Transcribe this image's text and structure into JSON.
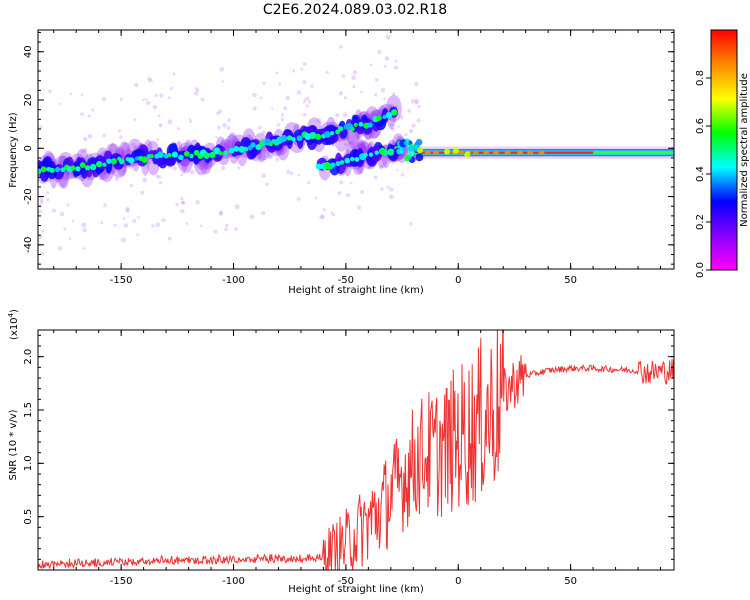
{
  "title": "C2E6.2024.089.03.02.R18",
  "chart_data": [
    {
      "type": "heatmap",
      "name": "spectrogram",
      "xlabel": "Height of straight line (km)",
      "ylabel": "Frequency (Hz)",
      "xlim": [
        -187,
        96
      ],
      "ylim": [
        -50,
        49
      ],
      "x_ticks": [
        -150,
        -100,
        -50,
        0,
        50
      ],
      "y_ticks": [
        -40,
        -20,
        0,
        20,
        40
      ],
      "colorbar": {
        "label": "Normalized spectral amplitude",
        "range": [
          0.0,
          1.0
        ],
        "ticks": [
          0.0,
          0.2,
          0.4,
          0.6,
          0.8
        ],
        "colormap": [
          "#ff00ff",
          "#8800ff",
          "#0000ff",
          "#00ffff",
          "#00ff00",
          "#ffff00",
          "#ff8800",
          "#ff0000"
        ]
      },
      "ridge": {
        "x": [
          -187,
          -175,
          -160,
          -150,
          -140,
          -130,
          -120,
          -110,
          -100,
          -90,
          -80,
          -70,
          -60,
          -50,
          -40,
          -30,
          -27,
          -20,
          -10,
          0,
          10,
          30,
          60,
          96
        ],
        "y": [
          -9,
          -8,
          -7,
          -5,
          -4,
          -3,
          -3,
          -2,
          -1,
          1,
          3,
          5,
          5,
          8,
          10,
          14,
          15,
          -1,
          -1.5,
          -1.5,
          -1.8,
          -1.8,
          -1.8,
          -1.8
        ]
      },
      "lower_branch": {
        "x": [
          -62,
          -55,
          -50,
          -45,
          -40,
          -35,
          -30,
          -25
        ],
        "y": [
          -8,
          -7,
          -5,
          -4,
          -3,
          -2,
          -1,
          0
        ]
      }
    },
    {
      "type": "line",
      "name": "snr",
      "xlabel": "Height of straight line (km)",
      "ylabel": "SNR (10 * v/v)",
      "scale_label": "(x10",
      "scale_exp": "4",
      "scale_close": ")",
      "xlim": [
        -187,
        96
      ],
      "ylim": [
        0.0,
        2.25
      ],
      "x_ticks": [
        -150,
        -100,
        -50,
        0,
        50
      ],
      "y_ticks": [
        0.5,
        1.0,
        1.5,
        2.0
      ],
      "series": [
        {
          "color": "#ee3333",
          "x": [
            -187,
            -170,
            -155,
            -145,
            -130,
            -115,
            -100,
            -85,
            -70,
            -60,
            -55,
            -50,
            -45,
            -40,
            -35,
            -30,
            -25,
            -20,
            -15,
            -10,
            -5,
            0,
            5,
            10,
            15,
            20,
            25,
            30,
            40,
            50,
            60,
            70,
            80,
            85,
            90,
            96
          ],
          "y": [
            0.03,
            0.04,
            0.06,
            0.07,
            0.08,
            0.09,
            0.1,
            0.11,
            0.12,
            0.14,
            0.18,
            0.25,
            0.35,
            0.45,
            0.55,
            0.7,
            0.85,
            1.0,
            1.1,
            1.1,
            1.15,
            1.25,
            1.3,
            1.4,
            1.5,
            1.65,
            1.76,
            1.82,
            1.87,
            1.89,
            1.89,
            1.88,
            1.87,
            1.85,
            1.86,
            1.87
          ]
        }
      ]
    }
  ]
}
